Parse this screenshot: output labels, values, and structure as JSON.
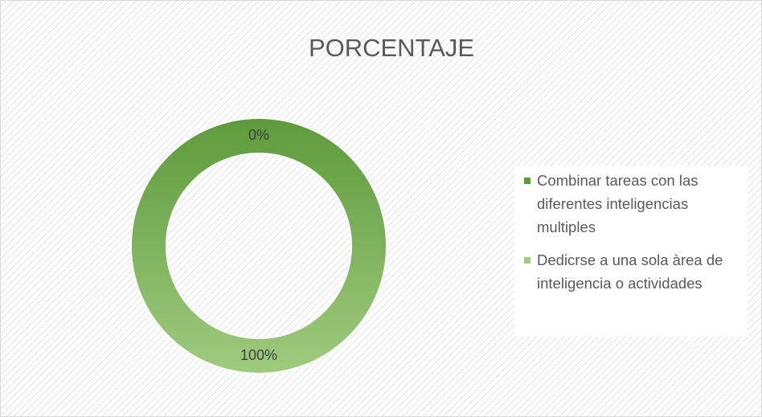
{
  "chart_data": {
    "type": "donut",
    "title": "PORCENTAJE",
    "categories": [
      "Combinar tareas con las diferentes inteligencias multiples",
      "Dedicrse a una sola àrea de inteligencia o actividades"
    ],
    "values": [
      0,
      100
    ],
    "value_labels": [
      "0%",
      "100%"
    ],
    "colors": [
      "#5e9a3b",
      "#9fcb80"
    ],
    "legend": "right"
  }
}
